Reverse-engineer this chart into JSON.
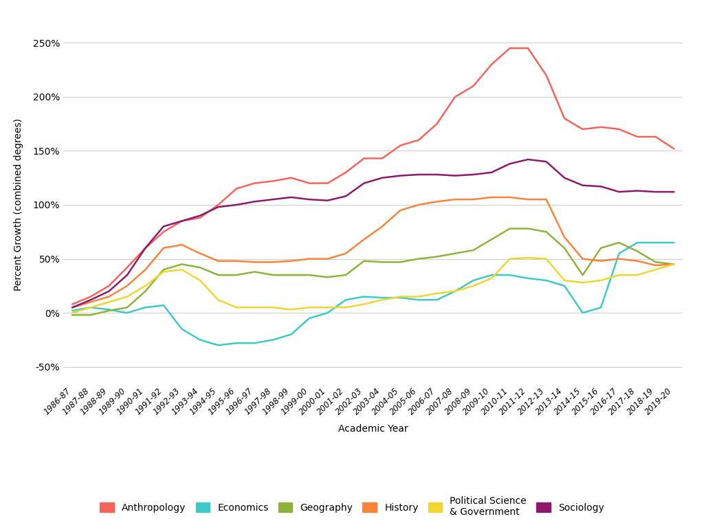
{
  "years": [
    "1986-87",
    "1987-88",
    "1988-89",
    "1989-90",
    "1990-91",
    "1991-92",
    "1992-93",
    "1993-94",
    "1994-95",
    "1995-96",
    "1996-97",
    "1997-98",
    "1998-99",
    "1999-00",
    "2000-01",
    "2001-02",
    "2002-03",
    "2003-04",
    "2004-05",
    "2005-06",
    "2006-07",
    "2007-08",
    "2008-09",
    "2009-10",
    "2010-11",
    "2011-12",
    "2012-13",
    "2013-14",
    "2014-15",
    "2015-16",
    "2016-17",
    "2017-18",
    "2018-19",
    "2019-20"
  ],
  "anthropology": [
    8,
    15,
    25,
    42,
    60,
    75,
    85,
    88,
    100,
    115,
    120,
    122,
    125,
    120,
    120,
    130,
    143,
    143,
    155,
    160,
    175,
    200,
    210,
    230,
    245,
    245,
    220,
    180,
    170,
    172,
    170,
    163,
    163,
    152
  ],
  "economics": [
    2,
    5,
    3,
    0,
    5,
    7,
    -15,
    -25,
    -30,
    -28,
    -28,
    -25,
    -20,
    -5,
    0,
    12,
    15,
    14,
    14,
    12,
    12,
    20,
    30,
    35,
    35,
    32,
    30,
    25,
    0,
    5,
    55,
    65,
    65,
    65
  ],
  "geography": [
    -2,
    -2,
    2,
    5,
    20,
    40,
    45,
    42,
    35,
    35,
    38,
    35,
    35,
    35,
    33,
    35,
    48,
    47,
    47,
    50,
    52,
    55,
    58,
    68,
    78,
    78,
    75,
    60,
    35,
    60,
    65,
    57,
    47,
    45
  ],
  "history": [
    5,
    10,
    15,
    25,
    40,
    60,
    63,
    55,
    48,
    48,
    47,
    47,
    48,
    50,
    50,
    55,
    68,
    80,
    95,
    100,
    103,
    105,
    105,
    107,
    107,
    105,
    105,
    70,
    50,
    48,
    50,
    48,
    44,
    45
  ],
  "political_science": [
    0,
    5,
    10,
    15,
    25,
    38,
    40,
    30,
    12,
    5,
    5,
    5,
    3,
    5,
    5,
    5,
    8,
    12,
    15,
    15,
    18,
    20,
    25,
    32,
    50,
    51,
    50,
    30,
    28,
    30,
    35,
    35,
    40,
    45
  ],
  "sociology": [
    5,
    12,
    20,
    35,
    60,
    80,
    85,
    90,
    98,
    100,
    103,
    105,
    107,
    105,
    104,
    108,
    120,
    125,
    127,
    128,
    128,
    127,
    128,
    130,
    138,
    142,
    140,
    125,
    118,
    117,
    112,
    113,
    112,
    112
  ],
  "colors": {
    "anthropology": "#F4645C",
    "economics": "#3EC9C9",
    "geography": "#8DB33A",
    "history": "#F7843A",
    "political_science": "#F0D630",
    "sociology": "#8B1A6B"
  },
  "labels": {
    "anthropology": "Anthropology",
    "economics": "Economics",
    "geography": "Geography",
    "history": "History",
    "political_science": "Political Science\n& Government",
    "sociology": "Sociology"
  },
  "ylabel": "Percent Growth (combined degrees)",
  "xlabel": "Academic Year",
  "yticks": [
    -50,
    0,
    50,
    100,
    150,
    200,
    250
  ],
  "ylim": [
    -65,
    265
  ],
  "background_color": "#FFFFFF"
}
